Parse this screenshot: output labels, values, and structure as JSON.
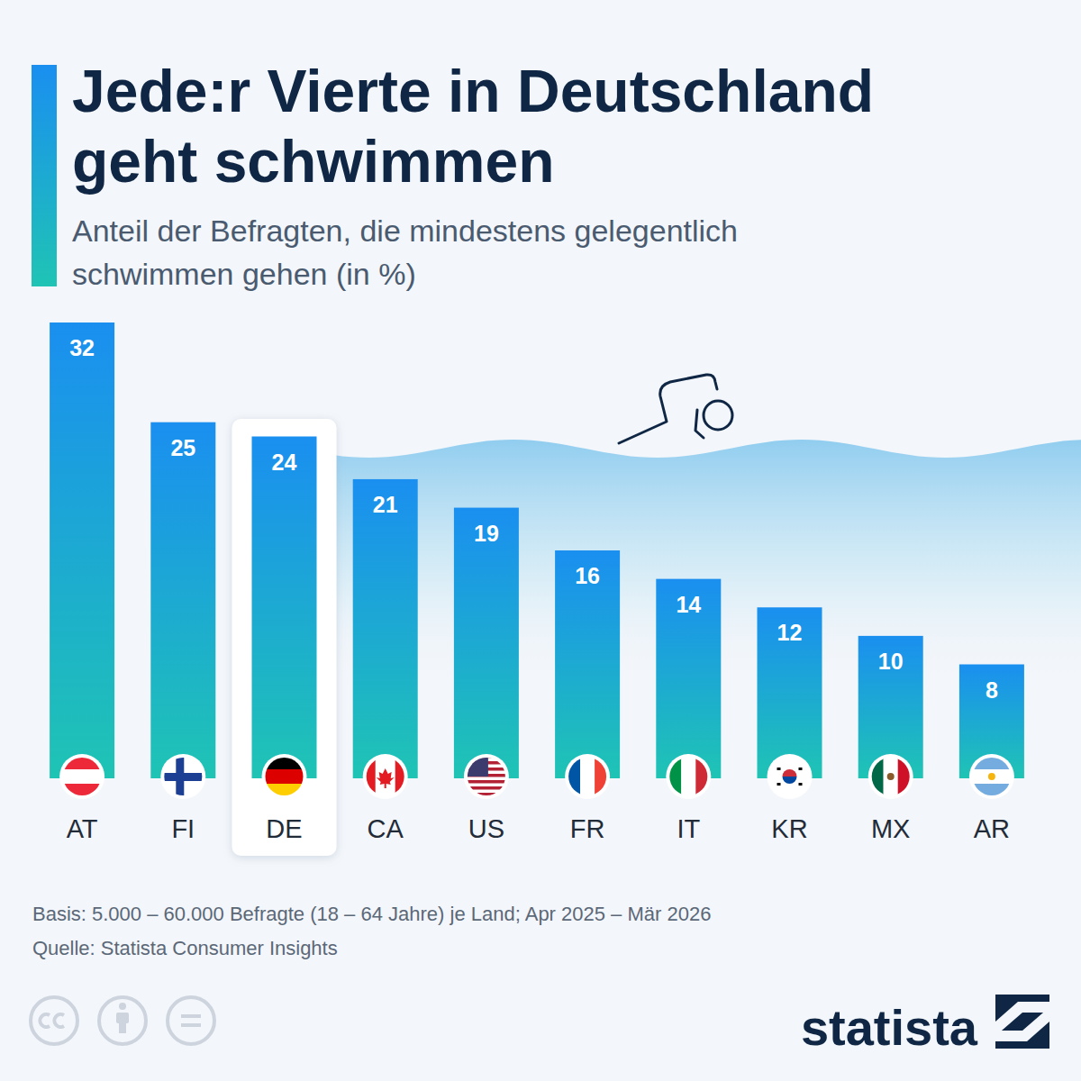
{
  "chart_data": {
    "type": "bar",
    "title": "Jede:r Vierte in Deutschland geht schwimmen",
    "subtitle": "Anteil der Befragten, die mindestens gelegentlich schwimmen gehen (in %)",
    "categories": [
      "AT",
      "FI",
      "DE",
      "CA",
      "US",
      "FR",
      "IT",
      "KR",
      "MX",
      "AR"
    ],
    "values": [
      32,
      25,
      24,
      21,
      19,
      16,
      14,
      12,
      10,
      8
    ],
    "color": "#1a8ff0",
    "ylim": [
      0,
      32
    ],
    "grid": false,
    "data_labels": true,
    "tick_labels": "x",
    "note": "Basis: 5.000 – 60.000 Befragte (18 – 64 Jahre) je Land; Apr 2025 – Mär 2026",
    "source": "Quelle: Statista Consumer Insights",
    "logo": "statista"
  }
}
